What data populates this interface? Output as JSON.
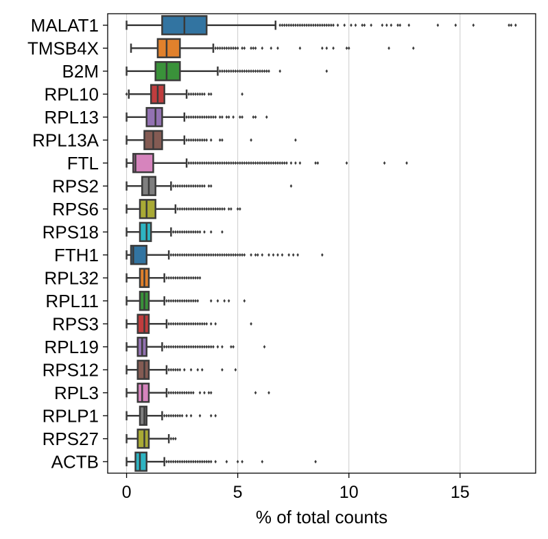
{
  "chart_data": {
    "type": "box",
    "orientation": "horizontal",
    "xlabel": "% of total counts",
    "xlim": [
      -0.85,
      18.4
    ],
    "xticks": [
      0,
      5,
      10,
      15
    ],
    "grid": "vertical",
    "series": [
      {
        "gene": "MALAT1",
        "color": "#3274a1",
        "whisker_low": 0.0,
        "q1": 1.6,
        "median": 2.6,
        "q3": 3.6,
        "whisker_high": 6.7,
        "outliers": [
          6.9,
          7.0,
          7.1,
          7.2,
          7.3,
          7.4,
          7.5,
          7.6,
          7.7,
          7.8,
          7.9,
          8.0,
          8.1,
          8.2,
          8.3,
          8.4,
          8.5,
          8.6,
          8.7,
          8.8,
          8.9,
          9.0,
          9.1,
          9.2,
          9.3,
          9.5,
          9.8,
          10.1,
          10.3,
          10.6,
          10.7,
          11.0,
          11.5,
          11.7,
          11.9,
          12.2,
          12.3,
          12.7,
          14.0,
          14.8,
          15.6,
          17.2,
          17.3,
          17.5
        ]
      },
      {
        "gene": "TMSB4X",
        "color": "#e1812c",
        "whisker_low": 0.2,
        "q1": 1.4,
        "median": 1.8,
        "q3": 2.4,
        "whisker_high": 3.9,
        "outliers": [
          4.0,
          4.1,
          4.2,
          4.3,
          4.4,
          4.5,
          4.6,
          4.7,
          4.8,
          4.9,
          5.0,
          5.2,
          5.3,
          5.6,
          5.7,
          5.8,
          6.1,
          6.5,
          6.8,
          7.8,
          8.8,
          9.0,
          9.3,
          9.9,
          10.0,
          11.8,
          12.9
        ]
      },
      {
        "gene": "B2M",
        "color": "#3a923a",
        "whisker_low": 0.0,
        "q1": 1.3,
        "median": 1.8,
        "q3": 2.4,
        "whisker_high": 4.1,
        "outliers": [
          4.2,
          4.3,
          4.4,
          4.5,
          4.6,
          4.7,
          4.8,
          4.9,
          5.0,
          5.1,
          5.2,
          5.3,
          5.4,
          5.5,
          5.6,
          5.7,
          5.8,
          5.9,
          6.0,
          6.1,
          6.2,
          6.3,
          6.4,
          6.9,
          9.0
        ]
      },
      {
        "gene": "RPL10",
        "color": "#c03d3e",
        "whisker_low": 0.1,
        "q1": 1.1,
        "median": 1.4,
        "q3": 1.7,
        "whisker_high": 2.7,
        "outliers": [
          0.0,
          2.8,
          2.9,
          3.0,
          3.1,
          3.2,
          3.3,
          3.4,
          3.5,
          3.7,
          3.8,
          5.2
        ]
      },
      {
        "gene": "RPL13",
        "color": "#9372b2",
        "whisker_low": 0.0,
        "q1": 0.9,
        "median": 1.3,
        "q3": 1.6,
        "whisker_high": 2.6,
        "outliers": [
          2.7,
          2.8,
          2.9,
          3.0,
          3.1,
          3.2,
          3.3,
          3.4,
          3.5,
          3.6,
          3.7,
          3.8,
          3.9,
          4.0,
          4.2,
          4.3,
          4.5,
          4.6,
          4.8,
          5.1,
          5.2,
          5.7,
          5.8,
          6.3
        ]
      },
      {
        "gene": "RPL13A",
        "color": "#845b53",
        "whisker_low": 0.0,
        "q1": 0.8,
        "median": 1.2,
        "q3": 1.6,
        "whisker_high": 2.6,
        "outliers": [
          2.7,
          2.8,
          2.9,
          3.0,
          3.1,
          3.2,
          3.3,
          3.4,
          3.5,
          3.6,
          3.8,
          4.2,
          4.3,
          5.6,
          7.6
        ]
      },
      {
        "gene": "FTL",
        "color": "#d684bd",
        "whisker_low": 0.0,
        "q1": 0.3,
        "median": 0.4,
        "q3": 1.2,
        "whisker_high": 2.7,
        "outliers": [
          2.8,
          2.9,
          3.0,
          3.1,
          3.2,
          3.3,
          3.4,
          3.5,
          3.6,
          3.7,
          3.8,
          3.9,
          4.0,
          4.1,
          4.2,
          4.3,
          4.4,
          4.5,
          4.6,
          4.7,
          4.8,
          4.9,
          5.0,
          5.1,
          5.2,
          5.3,
          5.4,
          5.5,
          5.6,
          5.7,
          5.8,
          5.9,
          6.0,
          6.1,
          6.2,
          6.3,
          6.4,
          6.5,
          6.6,
          6.7,
          6.8,
          6.9,
          7.0,
          7.1,
          7.2,
          7.4,
          7.6,
          7.8,
          8.5,
          8.6,
          9.9,
          11.6,
          12.6
        ]
      },
      {
        "gene": "RPS2",
        "color": "#7f7f7f",
        "whisker_low": 0.0,
        "q1": 0.7,
        "median": 1.0,
        "q3": 1.3,
        "whisker_high": 2.0,
        "outliers": [
          2.1,
          2.2,
          2.3,
          2.4,
          2.5,
          2.6,
          2.7,
          2.8,
          2.9,
          3.0,
          3.1,
          3.2,
          3.3,
          3.4,
          3.5,
          3.7,
          3.8,
          7.4
        ]
      },
      {
        "gene": "RPS6",
        "color": "#a9aa35",
        "whisker_low": 0.0,
        "q1": 0.6,
        "median": 0.9,
        "q3": 1.3,
        "whisker_high": 2.2,
        "outliers": [
          2.3,
          2.4,
          2.5,
          2.6,
          2.7,
          2.8,
          2.9,
          3.0,
          3.1,
          3.2,
          3.3,
          3.4,
          3.5,
          3.6,
          3.7,
          3.8,
          3.9,
          4.0,
          4.1,
          4.2,
          4.3,
          4.4,
          4.6,
          4.7,
          5.0,
          5.1
        ]
      },
      {
        "gene": "RPS18",
        "color": "#2eb4c2",
        "whisker_low": 0.0,
        "q1": 0.6,
        "median": 0.9,
        "q3": 1.1,
        "whisker_high": 2.0,
        "outliers": [
          2.1,
          2.2,
          2.3,
          2.4,
          2.5,
          2.6,
          2.7,
          2.8,
          2.9,
          3.0,
          3.1,
          3.2,
          3.3,
          3.5,
          3.8,
          4.3
        ]
      },
      {
        "gene": "FTH1",
        "color": "#3274a1",
        "whisker_low": 0.0,
        "q1": 0.2,
        "median": 0.3,
        "q3": 0.9,
        "whisker_high": 1.9,
        "outliers": [
          2.0,
          2.1,
          2.2,
          2.3,
          2.4,
          2.5,
          2.6,
          2.7,
          2.8,
          2.9,
          3.0,
          3.1,
          3.2,
          3.3,
          3.4,
          3.5,
          3.6,
          3.7,
          3.8,
          3.9,
          4.0,
          4.1,
          4.2,
          4.3,
          4.4,
          4.5,
          4.6,
          4.7,
          4.8,
          4.9,
          5.0,
          5.1,
          5.2,
          5.3,
          5.6,
          5.8,
          5.9,
          6.1,
          6.4,
          6.6,
          6.8,
          7.0,
          7.3,
          7.5,
          7.7,
          8.8
        ]
      },
      {
        "gene": "RPL32",
        "color": "#e1812c",
        "whisker_low": 0.0,
        "q1": 0.6,
        "median": 0.8,
        "q3": 1.0,
        "whisker_high": 1.7,
        "outliers": [
          1.8,
          1.9,
          2.0,
          2.1,
          2.2,
          2.3,
          2.4,
          2.5,
          2.6,
          2.7,
          2.8,
          2.9,
          3.0,
          3.1,
          3.2,
          3.3
        ]
      },
      {
        "gene": "RPL11",
        "color": "#3a923a",
        "whisker_low": 0.0,
        "q1": 0.6,
        "median": 0.8,
        "q3": 1.0,
        "whisker_high": 1.7,
        "outliers": [
          1.8,
          1.9,
          2.0,
          2.1,
          2.2,
          2.3,
          2.4,
          2.5,
          2.6,
          2.7,
          2.8,
          2.9,
          3.0,
          3.1,
          3.2,
          3.8,
          4.1,
          4.4,
          4.6,
          5.3
        ]
      },
      {
        "gene": "RPS3",
        "color": "#c03d3e",
        "whisker_low": 0.0,
        "q1": 0.5,
        "median": 0.8,
        "q3": 1.0,
        "whisker_high": 1.8,
        "outliers": [
          1.9,
          2.0,
          2.1,
          2.2,
          2.3,
          2.4,
          2.5,
          2.6,
          2.7,
          2.8,
          2.9,
          3.0,
          3.1,
          3.2,
          3.3,
          3.4,
          3.5,
          3.6,
          3.8,
          4.0,
          5.6
        ]
      },
      {
        "gene": "RPL19",
        "color": "#9372b2",
        "whisker_low": 0.0,
        "q1": 0.5,
        "median": 0.7,
        "q3": 0.9,
        "whisker_high": 1.6,
        "outliers": [
          1.7,
          1.8,
          1.9,
          2.0,
          2.1,
          2.2,
          2.3,
          2.4,
          2.5,
          2.6,
          2.7,
          2.8,
          2.9,
          3.0,
          3.1,
          3.2,
          3.3,
          3.4,
          3.5,
          3.6,
          3.7,
          3.8,
          3.9,
          4.1,
          4.3,
          4.7,
          4.8,
          6.2
        ]
      },
      {
        "gene": "RPS12",
        "color": "#845b53",
        "whisker_low": 0.0,
        "q1": 0.5,
        "median": 0.8,
        "q3": 1.0,
        "whisker_high": 1.8,
        "outliers": [
          1.9,
          2.0,
          2.1,
          2.2,
          2.3,
          2.4,
          2.6,
          2.9,
          3.2,
          3.4,
          4.3,
          4.9
        ]
      },
      {
        "gene": "RPL3",
        "color": "#d684bd",
        "whisker_low": 0.0,
        "q1": 0.5,
        "median": 0.7,
        "q3": 1.0,
        "whisker_high": 1.8,
        "outliers": [
          1.9,
          2.0,
          2.1,
          2.2,
          2.3,
          2.4,
          2.5,
          2.6,
          2.7,
          2.8,
          2.9,
          3.0,
          3.3,
          3.5,
          3.7,
          3.8,
          5.8,
          6.4
        ]
      },
      {
        "gene": "RPLP1",
        "color": "#7f7f7f",
        "whisker_low": 0.0,
        "q1": 0.6,
        "median": 0.8,
        "q3": 0.9,
        "whisker_high": 1.6,
        "outliers": [
          1.7,
          1.8,
          1.9,
          2.0,
          2.1,
          2.2,
          2.3,
          2.4,
          2.5,
          2.7,
          2.9,
          3.3,
          3.8,
          4.0
        ]
      },
      {
        "gene": "RPS27",
        "color": "#a9aa35",
        "whisker_low": 0.0,
        "q1": 0.5,
        "median": 0.8,
        "q3": 1.0,
        "whisker_high": 1.9,
        "outliers": [
          2.0,
          2.1,
          2.2
        ]
      },
      {
        "gene": "ACTB",
        "color": "#2eb4c2",
        "whisker_low": 0.0,
        "q1": 0.4,
        "median": 0.6,
        "q3": 0.9,
        "whisker_high": 1.7,
        "outliers": [
          1.8,
          1.9,
          2.0,
          2.1,
          2.2,
          2.3,
          2.4,
          2.5,
          2.6,
          2.7,
          2.8,
          2.9,
          3.0,
          3.1,
          3.2,
          3.3,
          3.4,
          3.5,
          3.6,
          3.7,
          3.8,
          4.0,
          4.5,
          5.0,
          5.2,
          6.1,
          8.5
        ]
      }
    ]
  },
  "style": {
    "box_edge_color": "#3a3a3a",
    "grid_color": "#cccccc",
    "axis_color": "#000000"
  }
}
